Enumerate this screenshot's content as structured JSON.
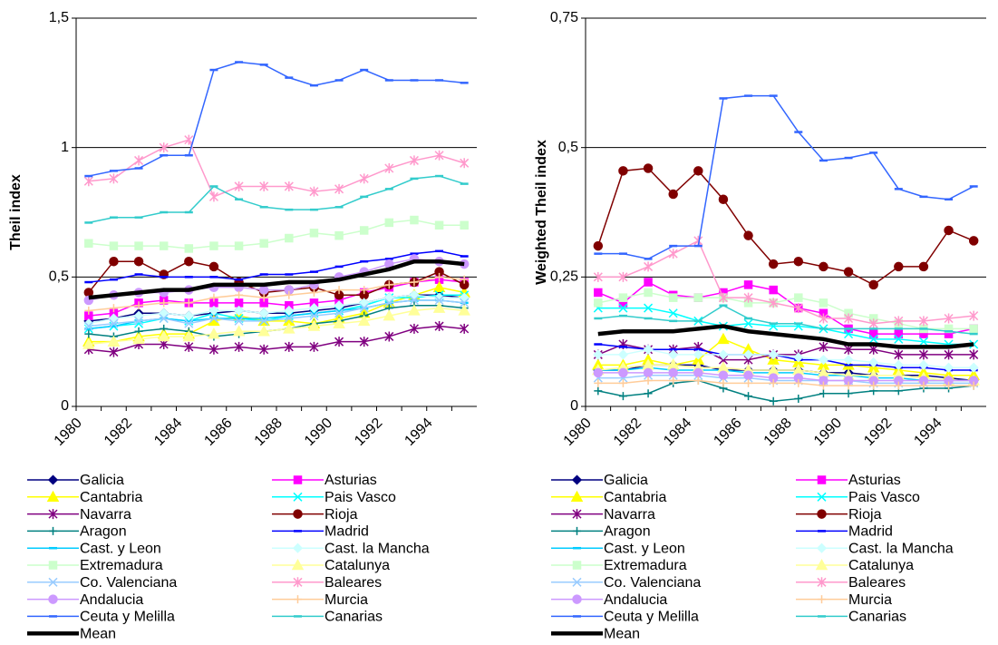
{
  "chart_data": [
    {
      "type": "line",
      "y_label": "Theil index",
      "categories": [
        "1980",
        null,
        "1982",
        null,
        "1984",
        null,
        "1986",
        null,
        "1988",
        null,
        "1990",
        null,
        "1992",
        null,
        "1994",
        null
      ],
      "ylim": [
        0,
        1.5
      ],
      "yticks": [
        0,
        {
          "value": 0.5,
          "label": "0,5"
        },
        1,
        {
          "value": 1.5,
          "label": "1,5"
        }
      ],
      "grid": true,
      "series": [
        {
          "name": "Galicia",
          "color": "#000080",
          "marker": "diamond",
          "values": [
            0.33,
            0.34,
            0.36,
            0.36,
            0.35,
            0.36,
            0.37,
            0.36,
            0.36,
            0.37,
            0.38,
            0.4,
            0.42,
            0.43,
            0.43,
            0.42
          ]
        },
        {
          "name": "Asturias",
          "color": "#FF00FF",
          "marker": "square",
          "values": [
            0.35,
            0.36,
            0.4,
            0.41,
            0.4,
            0.4,
            0.4,
            0.4,
            0.39,
            0.4,
            0.41,
            0.44,
            0.46,
            0.48,
            0.49,
            0.48
          ]
        },
        {
          "name": "Cantabria",
          "color": "#FFFF00",
          "marker": "triangle",
          "values": [
            0.25,
            0.25,
            0.27,
            0.28,
            0.28,
            0.33,
            0.35,
            0.33,
            0.33,
            0.32,
            0.34,
            0.36,
            0.4,
            0.43,
            0.46,
            0.44
          ]
        },
        {
          "name": "Pais Vasco",
          "color": "#00FFFF",
          "marker": "x",
          "values": [
            0.3,
            0.31,
            0.32,
            0.34,
            0.33,
            0.36,
            0.34,
            0.33,
            0.35,
            0.36,
            0.37,
            0.39,
            0.42,
            0.42,
            0.43,
            0.43
          ]
        },
        {
          "name": "Navarra",
          "color": "#800080",
          "marker": "star",
          "values": [
            0.22,
            0.21,
            0.24,
            0.24,
            0.23,
            0.22,
            0.23,
            0.22,
            0.23,
            0.23,
            0.25,
            0.25,
            0.27,
            0.3,
            0.31,
            0.3
          ]
        },
        {
          "name": "Rioja",
          "color": "#800000",
          "marker": "circle",
          "values": [
            0.44,
            0.56,
            0.56,
            0.51,
            0.56,
            0.54,
            0.48,
            0.44,
            0.45,
            0.46,
            0.43,
            0.43,
            0.47,
            0.48,
            0.52,
            0.47
          ]
        },
        {
          "name": "Aragon",
          "color": "#008080",
          "marker": "plus",
          "values": [
            0.28,
            0.27,
            0.29,
            0.3,
            0.29,
            0.27,
            0.28,
            0.29,
            0.3,
            0.32,
            0.33,
            0.35,
            0.38,
            0.39,
            0.39,
            0.38
          ]
        },
        {
          "name": "Madrid",
          "color": "#0000FF",
          "marker": "dash",
          "values": [
            0.48,
            0.49,
            0.51,
            0.5,
            0.5,
            0.5,
            0.49,
            0.51,
            0.51,
            0.52,
            0.54,
            0.56,
            0.57,
            0.59,
            0.6,
            0.58
          ]
        },
        {
          "name": "Cast. y Leon",
          "color": "#00CCFF",
          "marker": "dash",
          "values": [
            0.3,
            0.31,
            0.33,
            0.34,
            0.33,
            0.34,
            0.34,
            0.34,
            0.35,
            0.36,
            0.37,
            0.38,
            0.4,
            0.41,
            0.41,
            0.4
          ]
        },
        {
          "name": "Cast. la Mancha",
          "color": "#CCFFFF",
          "marker": "diamond",
          "values": [
            0.32,
            0.34,
            0.35,
            0.36,
            0.35,
            0.37,
            0.37,
            0.36,
            0.37,
            0.38,
            0.39,
            0.4,
            0.42,
            0.43,
            0.42,
            0.42
          ]
        },
        {
          "name": "Extremadura",
          "color": "#CCFFCC",
          "marker": "square",
          "values": [
            0.63,
            0.62,
            0.62,
            0.62,
            0.61,
            0.62,
            0.62,
            0.63,
            0.65,
            0.67,
            0.66,
            0.68,
            0.71,
            0.72,
            0.7,
            0.7
          ]
        },
        {
          "name": "Catalunya",
          "color": "#FFFF99",
          "marker": "triangle",
          "values": [
            0.24,
            0.25,
            0.26,
            0.27,
            0.27,
            0.28,
            0.29,
            0.29,
            0.3,
            0.31,
            0.32,
            0.33,
            0.35,
            0.37,
            0.38,
            0.37
          ]
        },
        {
          "name": "Co. Valenciana",
          "color": "#99CCFF",
          "marker": "x",
          "values": [
            0.31,
            0.32,
            0.33,
            0.34,
            0.32,
            0.34,
            0.33,
            0.33,
            0.34,
            0.35,
            0.36,
            0.38,
            0.4,
            0.41,
            0.41,
            0.4
          ]
        },
        {
          "name": "Baleares",
          "color": "#FF99CC",
          "marker": "star",
          "values": [
            0.87,
            0.88,
            0.95,
            1.0,
            1.03,
            0.81,
            0.85,
            0.85,
            0.85,
            0.83,
            0.84,
            0.88,
            0.92,
            0.95,
            0.97,
            0.94
          ]
        },
        {
          "name": "Andalucia",
          "color": "#CC99FF",
          "marker": "circle",
          "values": [
            0.41,
            0.43,
            0.44,
            0.44,
            0.45,
            0.46,
            0.46,
            0.45,
            0.45,
            0.47,
            0.5,
            0.52,
            0.55,
            0.57,
            0.56,
            0.55
          ]
        },
        {
          "name": "Murcia",
          "color": "#FFCC99",
          "marker": "plus",
          "values": [
            0.37,
            0.38,
            0.39,
            0.4,
            0.4,
            0.42,
            0.43,
            0.42,
            0.43,
            0.44,
            0.45,
            0.45,
            0.47,
            0.48,
            0.5,
            0.49
          ]
        },
        {
          "name": "Ceuta y Melilla",
          "color": "#3366FF",
          "marker": "dash",
          "values": [
            0.89,
            0.91,
            0.92,
            0.97,
            0.97,
            1.3,
            1.33,
            1.32,
            1.27,
            1.24,
            1.26,
            1.3,
            1.26,
            1.26,
            1.26,
            1.25
          ]
        },
        {
          "name": "Canarias",
          "color": "#33CCCC",
          "marker": "dash",
          "values": [
            0.71,
            0.73,
            0.73,
            0.75,
            0.75,
            0.85,
            0.8,
            0.77,
            0.76,
            0.76,
            0.77,
            0.81,
            0.84,
            0.88,
            0.89,
            0.86
          ]
        },
        {
          "name": "Mean",
          "color": "#000000",
          "marker": "none",
          "values": [
            0.42,
            0.43,
            0.44,
            0.45,
            0.45,
            0.47,
            0.47,
            0.47,
            0.48,
            0.48,
            0.49,
            0.51,
            0.53,
            0.56,
            0.56,
            0.55
          ]
        }
      ]
    },
    {
      "type": "line",
      "y_label": "Weighted Theil index",
      "categories": [
        "1980",
        null,
        "1982",
        null,
        "1984",
        null,
        "1986",
        null,
        "1988",
        null,
        "1990",
        null,
        "1992",
        null,
        "1994",
        null
      ],
      "ylim": [
        0,
        0.75
      ],
      "yticks": [
        0,
        {
          "value": 0.25,
          "label": "0,25"
        },
        {
          "value": 0.5,
          "label": "0,5"
        },
        {
          "value": 0.75,
          "label": "0,75"
        }
      ],
      "grid": true,
      "series": [
        {
          "name": "Galicia",
          "color": "#000080",
          "marker": "diamond",
          "values": [
            0.07,
            0.07,
            0.08,
            0.08,
            0.08,
            0.07,
            0.07,
            0.07,
            0.07,
            0.065,
            0.065,
            0.06,
            0.06,
            0.06,
            0.055,
            0.05
          ]
        },
        {
          "name": "Asturias",
          "color": "#FF00FF",
          "marker": "square",
          "values": [
            0.22,
            0.2,
            0.24,
            0.215,
            0.21,
            0.22,
            0.235,
            0.225,
            0.19,
            0.18,
            0.15,
            0.14,
            0.14,
            0.14,
            0.14,
            0.15
          ]
        },
        {
          "name": "Cantabria",
          "color": "#FFFF00",
          "marker": "triangle",
          "values": [
            0.08,
            0.08,
            0.09,
            0.08,
            0.09,
            0.13,
            0.11,
            0.09,
            0.085,
            0.08,
            0.08,
            0.075,
            0.07,
            0.065,
            0.06,
            0.06
          ]
        },
        {
          "name": "Pais Vasco",
          "color": "#00FFFF",
          "marker": "x",
          "values": [
            0.19,
            0.19,
            0.19,
            0.18,
            0.165,
            0.155,
            0.16,
            0.155,
            0.155,
            0.15,
            0.14,
            0.13,
            0.13,
            0.125,
            0.12,
            0.12
          ]
        },
        {
          "name": "Navarra",
          "color": "#800080",
          "marker": "star",
          "values": [
            0.1,
            0.12,
            0.11,
            0.11,
            0.115,
            0.09,
            0.09,
            0.1,
            0.1,
            0.115,
            0.11,
            0.11,
            0.1,
            0.1,
            0.1,
            0.1
          ]
        },
        {
          "name": "Rioja",
          "color": "#800000",
          "marker": "circle",
          "values": [
            0.31,
            0.455,
            0.46,
            0.41,
            0.455,
            0.4,
            0.33,
            0.275,
            0.28,
            0.27,
            0.26,
            0.235,
            0.27,
            0.27,
            0.34,
            0.32
          ]
        },
        {
          "name": "Aragon",
          "color": "#008080",
          "marker": "plus",
          "values": [
            0.03,
            0.02,
            0.025,
            0.045,
            0.05,
            0.035,
            0.02,
            0.01,
            0.015,
            0.025,
            0.025,
            0.03,
            0.03,
            0.035,
            0.035,
            0.04
          ]
        },
        {
          "name": "Madrid",
          "color": "#0000FF",
          "marker": "dash",
          "values": [
            0.12,
            0.115,
            0.11,
            0.11,
            0.11,
            0.1,
            0.1,
            0.1,
            0.09,
            0.09,
            0.08,
            0.08,
            0.075,
            0.075,
            0.07,
            0.07
          ]
        },
        {
          "name": "Cast. y Leon",
          "color": "#00CCFF",
          "marker": "dash",
          "values": [
            0.07,
            0.07,
            0.075,
            0.07,
            0.07,
            0.07,
            0.065,
            0.065,
            0.065,
            0.06,
            0.06,
            0.055,
            0.055,
            0.05,
            0.05,
            0.05
          ]
        },
        {
          "name": "Cast. la Mancha",
          "color": "#CCFFFF",
          "marker": "diamond",
          "values": [
            0.1,
            0.1,
            0.11,
            0.1,
            0.1,
            0.1,
            0.1,
            0.1,
            0.095,
            0.09,
            0.09,
            0.085,
            0.08,
            0.08,
            0.075,
            0.075
          ]
        },
        {
          "name": "Extremadura",
          "color": "#CCFFCC",
          "marker": "square",
          "values": [
            0.2,
            0.21,
            0.22,
            0.21,
            0.21,
            0.21,
            0.2,
            0.2,
            0.21,
            0.2,
            0.18,
            0.17,
            0.16,
            0.15,
            0.15,
            0.15
          ]
        },
        {
          "name": "Catalunya",
          "color": "#FFFF99",
          "marker": "triangle",
          "values": [
            0.07,
            0.075,
            0.08,
            0.08,
            0.075,
            0.075,
            0.07,
            0.07,
            0.07,
            0.065,
            0.06,
            0.06,
            0.06,
            0.055,
            0.05,
            0.05
          ]
        },
        {
          "name": "Co. Valenciana",
          "color": "#99CCFF",
          "marker": "x",
          "values": [
            0.055,
            0.055,
            0.06,
            0.06,
            0.06,
            0.055,
            0.055,
            0.05,
            0.05,
            0.05,
            0.05,
            0.045,
            0.045,
            0.045,
            0.045,
            0.045
          ]
        },
        {
          "name": "Baleares",
          "color": "#FF99CC",
          "marker": "star",
          "values": [
            0.25,
            0.25,
            0.27,
            0.295,
            0.32,
            0.21,
            0.21,
            0.2,
            0.19,
            0.17,
            0.17,
            0.16,
            0.165,
            0.165,
            0.17,
            0.175
          ]
        },
        {
          "name": "Andalucia",
          "color": "#CC99FF",
          "marker": "circle",
          "values": [
            0.065,
            0.065,
            0.065,
            0.065,
            0.065,
            0.06,
            0.06,
            0.055,
            0.055,
            0.05,
            0.05,
            0.05,
            0.05,
            0.05,
            0.05,
            0.05
          ]
        },
        {
          "name": "Murcia",
          "color": "#FFCC99",
          "marker": "plus",
          "values": [
            0.045,
            0.045,
            0.05,
            0.05,
            0.05,
            0.045,
            0.045,
            0.045,
            0.045,
            0.04,
            0.04,
            0.04,
            0.04,
            0.04,
            0.04,
            0.04
          ]
        },
        {
          "name": "Ceuta y Melilla",
          "color": "#3366FF",
          "marker": "dash",
          "values": [
            0.295,
            0.295,
            0.285,
            0.31,
            0.31,
            0.595,
            0.6,
            0.6,
            0.53,
            0.475,
            0.48,
            0.49,
            0.42,
            0.405,
            0.4,
            0.425
          ]
        },
        {
          "name": "Canarias",
          "color": "#33CCCC",
          "marker": "dash",
          "values": [
            0.17,
            0.175,
            0.17,
            0.165,
            0.165,
            0.195,
            0.17,
            0.16,
            0.16,
            0.15,
            0.15,
            0.15,
            0.15,
            0.15,
            0.145,
            0.14
          ]
        },
        {
          "name": "Mean",
          "color": "#000000",
          "marker": "none",
          "values": [
            0.14,
            0.145,
            0.145,
            0.145,
            0.15,
            0.155,
            0.145,
            0.14,
            0.135,
            0.13,
            0.12,
            0.12,
            0.115,
            0.115,
            0.115,
            0.12
          ]
        }
      ]
    }
  ]
}
